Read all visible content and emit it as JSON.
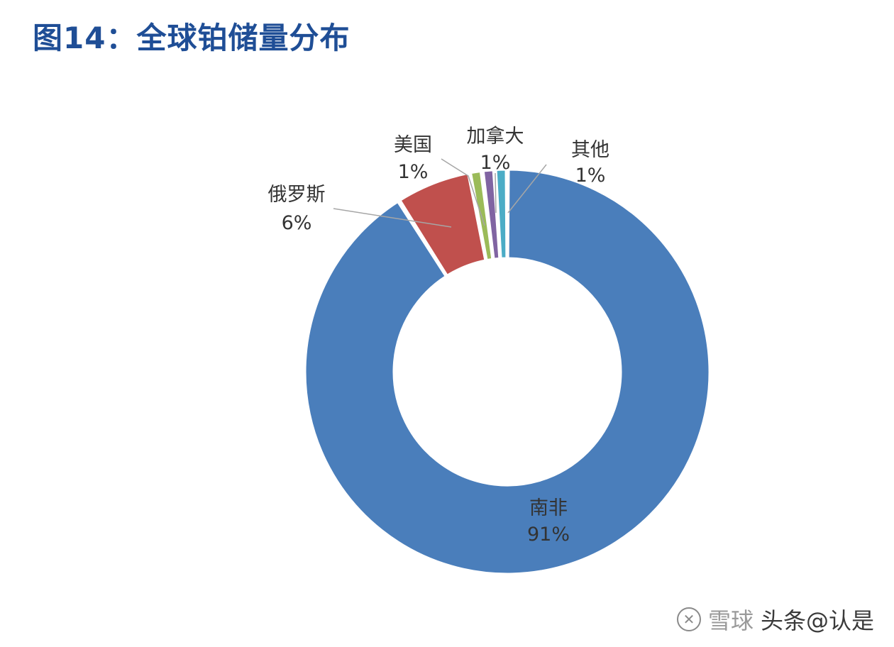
{
  "title": "图14：全球铂储量分布",
  "watermark": {
    "brand": "雪球",
    "text": "头条@认是"
  },
  "chart_data": {
    "type": "pie",
    "donut": true,
    "categories": [
      "南非",
      "俄罗斯",
      "美国",
      "加拿大",
      "其他"
    ],
    "values": [
      91,
      6,
      1,
      1,
      1
    ],
    "value_labels": [
      "91%",
      "6%",
      "1%",
      "1%",
      "1%"
    ],
    "colors": [
      "#4a7ebb",
      "#c0504d",
      "#9bbb59",
      "#8064a2",
      "#4bacc6"
    ],
    "legend": "none"
  }
}
